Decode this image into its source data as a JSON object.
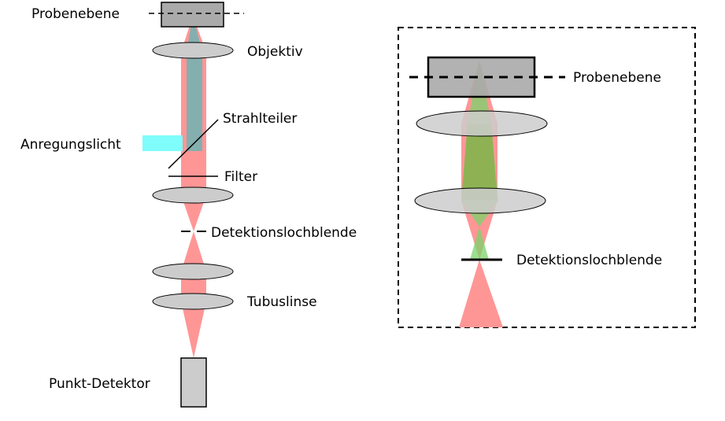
{
  "labels": {
    "probenebene_main": "Probenebene",
    "objektiv": "Objektiv",
    "strahlteiler": "Strahlteiler",
    "anregungslicht": "Anregungslicht",
    "filter": "Filter",
    "detektionslochblende_main": "Detektionslochblende",
    "tubuslinse": "Tubuslinse",
    "punkt_detektor": "Punkt-Detektor",
    "probenebene_inset": "Probenebene",
    "detektionslochblende_inset": "Detektionslochblende"
  },
  "colors": {
    "emission": "#ff9696",
    "excitation": "#7ffcfc",
    "excitation_overlap": "#6fb4b4",
    "inset_green": "#7bd36b",
    "inset_overlap": "#8db050",
    "lens_fill": "#cccccc",
    "sample_fill": "#aaaaaa",
    "detector_fill": "#cccccc"
  }
}
